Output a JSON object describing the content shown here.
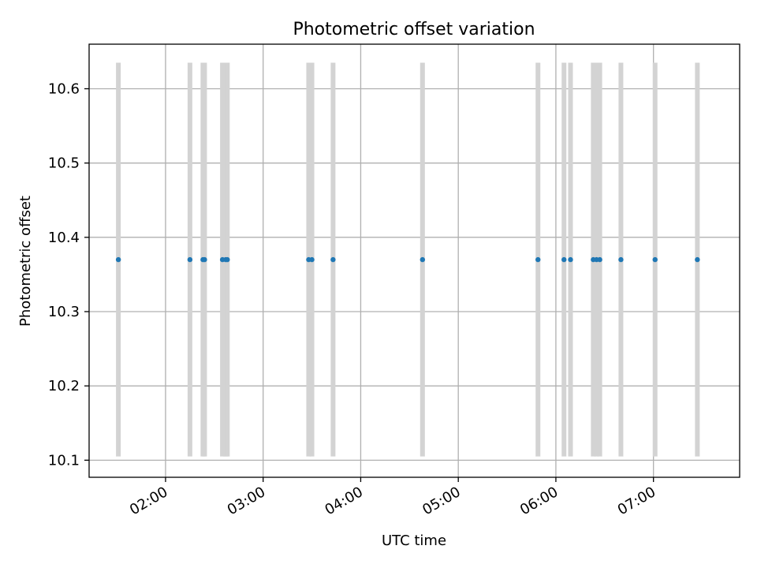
{
  "chart_data": {
    "type": "scatter",
    "title": "Photometric offset variation",
    "xlabel": "UTC time",
    "ylabel": "Photometric offset",
    "xlim": [
      "01:13",
      "07:53"
    ],
    "ylim": [
      10.077,
      10.66
    ],
    "grid": true,
    "x_ticks": [
      "02:00",
      "03:00",
      "04:00",
      "05:00",
      "06:00",
      "07:00"
    ],
    "y_ticks": [
      "10.1",
      "10.2",
      "10.3",
      "10.4",
      "10.5",
      "10.6"
    ],
    "colors": {
      "points": "#1f77b4",
      "error_bars": "#d3d3d3",
      "grid": "#b0b0b0"
    },
    "series": [
      {
        "x": [
          "01:31",
          "02:15",
          "02:23",
          "02:24",
          "02:35",
          "02:37",
          "02:38",
          "03:28",
          "03:30",
          "03:43",
          "04:38",
          "05:49",
          "06:05",
          "06:09",
          "06:23",
          "06:25",
          "06:27",
          "06:40",
          "07:01",
          "07:27"
        ],
        "y": [
          10.37,
          10.37,
          10.37,
          10.37,
          10.37,
          10.37,
          10.37,
          10.37,
          10.37,
          10.37,
          10.37,
          10.37,
          10.37,
          10.37,
          10.37,
          10.37,
          10.37,
          10.37,
          10.37,
          10.37
        ],
        "yerr": [
          0.265,
          0.265,
          0.265,
          0.265,
          0.265,
          0.265,
          0.265,
          0.265,
          0.265,
          0.265,
          0.265,
          0.265,
          0.265,
          0.265,
          0.265,
          0.265,
          0.265,
          0.265,
          0.265,
          0.265
        ]
      }
    ]
  }
}
